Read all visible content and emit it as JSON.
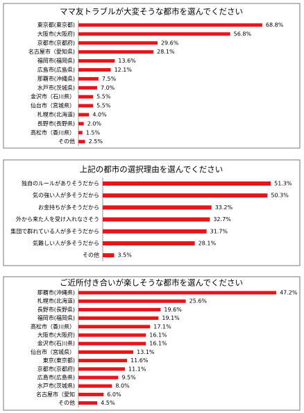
{
  "chart_data": [
    {
      "type": "bar",
      "orientation": "horizontal",
      "title": "ママ友トラブルが大変そうな都市を選んでください",
      "color": "#e8141b",
      "categories": [
        "東京都(東京都)",
        "大阪市(大阪府)",
        "京都市(京都府)",
        "名古屋市（愛知県)",
        "福岡市(福岡県)",
        "広島市(広島県)",
        "那覇市(沖縄県)",
        "水戸市(茨城県)",
        "金沢市（石川県）",
        "仙台市（宮城県）",
        "札幌市(北海道)",
        "長野市(長野県)",
        "高松市（香川県）",
        "その他"
      ],
      "values": [
        68.8,
        56.8,
        29.6,
        28.1,
        13.6,
        12.1,
        7.5,
        7.0,
        5.5,
        5.5,
        4.0,
        2.0,
        1.5,
        2.5
      ],
      "value_labels": [
        "68.8%",
        "56.8%",
        "29.6%",
        "28.1%",
        "13.6%",
        "12.1%",
        "7.5%",
        "7.0%",
        "5.5%",
        "5.5%",
        "4.0%",
        "2.0%",
        "1.5%",
        "2.5%"
      ]
    },
    {
      "type": "bar",
      "orientation": "horizontal",
      "title": "上記の都市の選択理由を選んでください",
      "color": "#e8141b",
      "categories": [
        "独自のルールがありそうだから",
        "気の強い人が多そうだから",
        "お金持ちが多そうだから",
        "外から来た人を受け入れなさそう",
        "集団で群れている人が多そうだから",
        "気難しい人が多そうだから",
        "その他"
      ],
      "values": [
        51.3,
        50.3,
        33.2,
        32.7,
        31.7,
        28.1,
        3.5
      ],
      "value_labels": [
        "51.3%",
        "50.3%",
        "33.2%",
        "32.7%",
        "31.7%",
        "28.1%",
        "3.5%"
      ]
    },
    {
      "type": "bar",
      "orientation": "horizontal",
      "title": "ご近所付き合いが楽しそうな都市を選んでください",
      "color": "#e8141b",
      "categories": [
        "那覇市(沖縄県)",
        "札幌市(北海道)",
        "長野市(長野県)",
        "福岡市(福岡県)",
        "高松市（香川県）",
        "大阪市(大阪府)",
        "金沢市(石川県)",
        "仙台市（宮城県）",
        "東京(東京都)",
        "京都市(京都府)",
        "広島市(広島県)",
        "水戸市(茨城県)",
        "名古屋市（愛知",
        "その他"
      ],
      "values": [
        47.2,
        25.6,
        19.6,
        19.1,
        17.1,
        16.1,
        16.1,
        13.1,
        11.6,
        11.1,
        9.5,
        8.0,
        6.0,
        4.5
      ],
      "value_labels": [
        "47.2%",
        "25.6%",
        "19.6%",
        "19.1%",
        "17.1%",
        "16.1%",
        "16.1%",
        "13.1%",
        "11.6%",
        "11.1%",
        "9.5%",
        "8.0%",
        "6.0%",
        "4.5%"
      ]
    }
  ]
}
